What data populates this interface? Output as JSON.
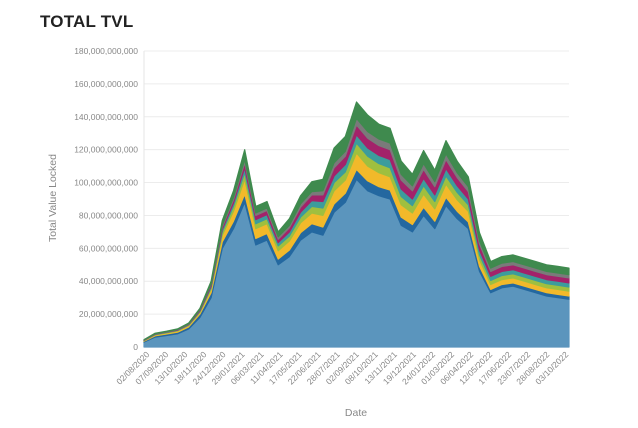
{
  "chart_data": {
    "type": "area",
    "title": "TOTAL TVL",
    "xlabel": "Date",
    "ylabel": "Total Value Locked",
    "ylim": [
      0,
      180000000000
    ],
    "yticks": [
      0,
      20000000000,
      40000000000,
      60000000000,
      80000000000,
      100000000000,
      120000000000,
      140000000000,
      160000000000,
      180000000000
    ],
    "ytick_labels": [
      "0",
      "20,000,000,000",
      "40,000,000,000",
      "60,000,000,000",
      "80,000,000,000",
      "100,000,000,000",
      "120,000,000,000",
      "140,000,000,000",
      "160,000,000,000",
      "180,000,000,000"
    ],
    "xtick_labels": [
      "02/08/2020",
      "07/09/2020",
      "13/10/2020",
      "18/11/2020",
      "24/12/2020",
      "29/01/2021",
      "06/03/2021",
      "11/04/2021",
      "17/05/2021",
      "22/06/2021",
      "28/07/2021",
      "02/09/2021",
      "08/10/2021",
      "13/11/2021",
      "19/12/2021",
      "24/01/2022",
      "01/03/2022",
      "06/04/2022",
      "12/05/2022",
      "17/06/2022",
      "23/07/2022",
      "28/08/2022",
      "03/10/2022"
    ],
    "stacked": true,
    "grid": true,
    "legend": "none",
    "x": [
      "02/08/2020",
      "07/09/2020",
      "13/10/2020",
      "18/11/2020",
      "24/12/2020",
      "29/01/2021",
      "06/03/2021",
      "11/04/2021",
      "25/04/2021",
      "17/05/2021",
      "01/06/2021",
      "22/06/2021",
      "08/07/2021",
      "28/07/2021",
      "15/08/2021",
      "02/09/2021",
      "20/09/2021",
      "08/10/2021",
      "25/10/2021",
      "13/11/2021",
      "01/12/2021",
      "19/12/2021",
      "05/01/2022",
      "24/01/2022",
      "10/02/2022",
      "01/03/2022",
      "18/03/2022",
      "06/04/2022",
      "22/04/2022",
      "05/05/2022",
      "12/05/2022",
      "17/06/2022",
      "05/07/2022",
      "23/07/2022",
      "10/08/2022",
      "28/08/2022",
      "15/09/2022",
      "03/10/2022",
      "15/10/2022"
    ],
    "series": [
      {
        "color": "#5b95bd",
        "values": [
          3,
          6,
          7,
          8,
          11,
          18,
          30,
          60,
          72,
          88,
          62,
          65,
          50,
          55,
          65,
          70,
          68,
          82,
          88,
          102,
          95,
          92,
          90,
          74,
          70,
          80,
          72,
          86,
          78,
          72,
          46,
          33,
          36,
          37,
          35,
          33,
          31,
          30,
          29
        ]
      },
      {
        "color": "#2468a0",
        "values": [
          0.5,
          0.8,
          0.9,
          1,
          1.2,
          2,
          3,
          4,
          4.5,
          5,
          4,
          4,
          3.5,
          4,
          4.5,
          5,
          5,
          5,
          5.5,
          6,
          6,
          5.5,
          5.5,
          5,
          4.5,
          5,
          4.5,
          5,
          4.5,
          4,
          3,
          2,
          2,
          2,
          2,
          2,
          2,
          2,
          2
        ]
      },
      {
        "color": "#f2b92a",
        "values": [
          0.3,
          0.5,
          0.6,
          0.7,
          0.8,
          1,
          2,
          4,
          6,
          9,
          6,
          6,
          5,
          5.5,
          6,
          6.5,
          7,
          8,
          8,
          10,
          9,
          8.5,
          8,
          7.5,
          7,
          8,
          7.5,
          8,
          7,
          6.5,
          4,
          3,
          3,
          3,
          3,
          3,
          3,
          3,
          3
        ]
      },
      {
        "color": "#9fbf3f",
        "values": [
          0.2,
          0.3,
          0.3,
          0.4,
          0.4,
          0.6,
          1,
          2,
          3,
          4,
          3,
          3,
          3,
          3,
          3.5,
          4,
          4.5,
          5,
          5,
          6,
          6,
          5.5,
          5.5,
          5,
          4.5,
          5,
          4.5,
          5,
          4.5,
          4,
          3,
          2.5,
          2.5,
          2.5,
          2.5,
          2.5,
          2.5,
          2.5,
          2.5
        ]
      },
      {
        "color": "#3c9c9c",
        "values": [
          0.1,
          0.2,
          0.2,
          0.2,
          0.3,
          0.5,
          1,
          1.5,
          2,
          3,
          2.5,
          2.5,
          2,
          2.5,
          3,
          3.5,
          4,
          4,
          4.5,
          5,
          5,
          5,
          5,
          4.5,
          4,
          4.5,
          4,
          4.5,
          4,
          3.5,
          3,
          2.5,
          2.5,
          2.5,
          2.5,
          2.5,
          2.5,
          2.5,
          2.5
        ]
      },
      {
        "color": "#a3226a",
        "values": [
          0.1,
          0.2,
          0.2,
          0.2,
          0.3,
          0.5,
          1,
          1.5,
          2,
          3,
          2.5,
          2.5,
          2,
          2.5,
          3,
          3.5,
          4,
          5,
          5,
          6,
          6,
          6,
          6,
          5.5,
          5,
          5.5,
          5,
          5.5,
          5,
          4.5,
          3.5,
          3,
          3,
          3,
          3,
          3,
          3,
          3,
          3
        ]
      },
      {
        "color": "#7a7a7a",
        "values": [
          0.1,
          0.1,
          0.1,
          0.2,
          0.2,
          0.3,
          0.5,
          1,
          1.5,
          2,
          1.5,
          1.5,
          1.5,
          1.5,
          2,
          2,
          2.5,
          3,
          3,
          4,
          4,
          4,
          4,
          3.5,
          3,
          3.5,
          3,
          3.5,
          3,
          3,
          2,
          2,
          2,
          2,
          2,
          2,
          2,
          2,
          2
        ]
      },
      {
        "color": "#3f8a4e",
        "values": [
          0.2,
          0.3,
          0.3,
          0.3,
          0.4,
          0.6,
          1.5,
          3,
          4,
          6,
          4,
          4,
          3,
          4,
          5,
          6,
          7,
          9,
          9,
          10,
          10,
          9,
          9,
          8,
          7,
          8,
          7,
          8,
          7,
          6,
          5,
          4,
          4,
          4,
          4,
          4,
          4,
          4,
          4
        ]
      }
    ]
  }
}
